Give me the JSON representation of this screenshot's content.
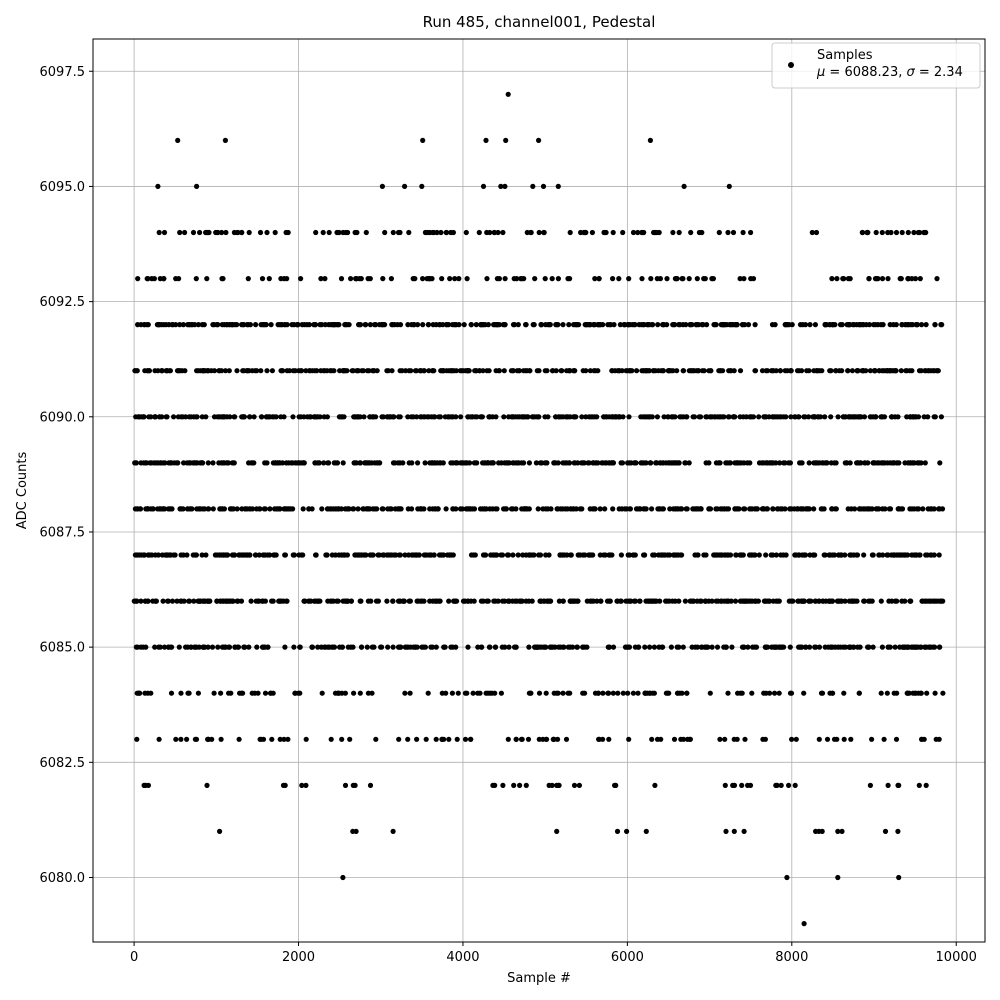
{
  "chart_data": {
    "type": "scatter",
    "title": "Run 485, channel001, Pedestal",
    "xlabel": "Sample #",
    "ylabel": "ADC Counts",
    "xlim": [
      -500,
      10350
    ],
    "ylim": [
      6078.6,
      6098.2
    ],
    "xticks": [
      0,
      2000,
      4000,
      6000,
      8000,
      10000
    ],
    "xtick_labels": [
      "0",
      "2000",
      "4000",
      "6000",
      "8000",
      "10000"
    ],
    "yticks": [
      6080.0,
      6082.5,
      6085.0,
      6087.5,
      6090.0,
      6092.5,
      6095.0,
      6097.5
    ],
    "ytick_labels": [
      "6080.0",
      "6082.5",
      "6085.0",
      "6087.5",
      "6090.0",
      "6092.5",
      "6095.0",
      "6097.5"
    ],
    "grid": true,
    "legend_position": "top-right",
    "marker_color": "#000000",
    "x_range": [
      0,
      9840
    ],
    "legend": {
      "label": "Samples",
      "mu_symbol": "μ",
      "sigma_symbol": "σ",
      "mu_value": "6088.23",
      "sigma_value": "2.34"
    },
    "series": [
      {
        "name": "Samples",
        "points": [
          [
            2540,
            6080
          ],
          [
            7940,
            6080
          ],
          [
            8560,
            6080
          ],
          [
            9300,
            6080
          ],
          [
            8150,
            6079
          ],
          [
            1040,
            6081
          ],
          [
            2660,
            6081
          ],
          [
            2700,
            6081
          ],
          [
            3150,
            6081
          ],
          [
            5140,
            6081
          ],
          [
            5880,
            6081
          ],
          [
            5990,
            6081
          ],
          [
            6230,
            6081
          ],
          [
            7200,
            6081
          ],
          [
            7300,
            6081
          ],
          [
            7420,
            6081
          ],
          [
            8290,
            6081
          ],
          [
            8330,
            6081
          ],
          [
            8370,
            6081
          ],
          [
            8560,
            6081
          ],
          [
            8610,
            6081
          ],
          [
            9140,
            6081
          ],
          [
            9290,
            6081
          ],
          [
            530,
            6096
          ],
          [
            1110,
            6096
          ],
          [
            3510,
            6096
          ],
          [
            4280,
            6096
          ],
          [
            4520,
            6096
          ],
          [
            4920,
            6096
          ],
          [
            6280,
            6096
          ],
          [
            4550,
            6097
          ],
          [
            290,
            6095
          ],
          [
            760,
            6095
          ],
          [
            3020,
            6095
          ],
          [
            3290,
            6095
          ],
          [
            3500,
            6095
          ],
          [
            4250,
            6095
          ],
          [
            4460,
            6095
          ],
          [
            4510,
            6095
          ],
          [
            4850,
            6095
          ],
          [
            4980,
            6095
          ],
          [
            5160,
            6095
          ],
          [
            6690,
            6095
          ],
          [
            7240,
            6095
          ]
        ],
        "bands": [
          {
            "y": 6092,
            "n": 330,
            "gaps": [
              [
                7600,
                7660
              ],
              [
                7800,
                7880
              ],
              [
                8050,
                8090
              ]
            ]
          },
          {
            "y": 6091,
            "n": 330,
            "gaps": [
              [
                7560,
                7620
              ]
            ]
          },
          {
            "y": 6090,
            "n": 350,
            "gaps": []
          },
          {
            "y": 6089,
            "n": 360,
            "gaps": []
          },
          {
            "y": 6088,
            "n": 360,
            "gaps": []
          },
          {
            "y": 6087,
            "n": 350,
            "gaps": [
              [
                4560,
                4590
              ]
            ]
          },
          {
            "y": 6086,
            "n": 340,
            "gaps": [
              [
                4430,
                4480
              ]
            ]
          },
          {
            "y": 6085,
            "n": 280,
            "gaps": []
          }
        ],
        "sparse_rows": [
          {
            "y": 6094,
            "n": 120,
            "gaps": [
              [
                7550,
                8100
              ],
              [
                8400,
                8820
              ]
            ]
          },
          {
            "y": 6093,
            "n": 110,
            "gaps": [
              [
                7560,
                8400
              ]
            ]
          },
          {
            "y": 6084,
            "n": 140,
            "gaps": []
          },
          {
            "y": 6083,
            "n": 90,
            "gaps": []
          },
          {
            "y": 6082,
            "n": 45,
            "gaps": [
              [
                2900,
                4100
              ]
            ]
          }
        ]
      }
    ]
  }
}
